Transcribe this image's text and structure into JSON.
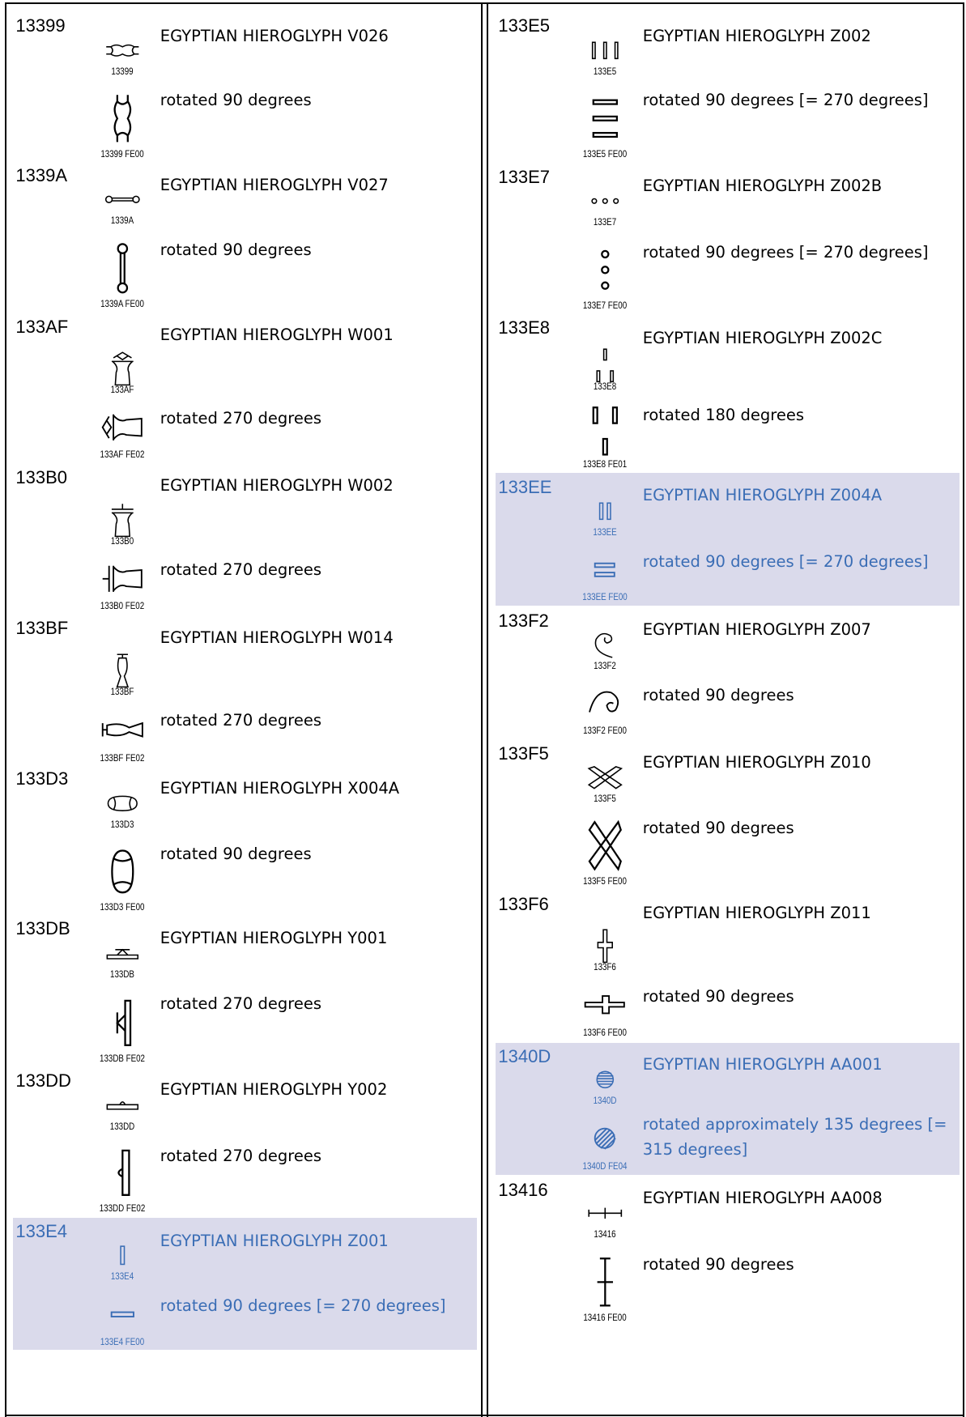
{
  "columns": [
    {
      "entries": [
        {
          "code": "13399",
          "name": "EGYPTIAN HIEROGLYPH V026",
          "glyph_label": "13399",
          "variant": {
            "description": "rotated 90 degrees",
            "label": "13399 FE00"
          },
          "highlighted": false
        },
        {
          "code": "1339A",
          "name": "EGYPTIAN HIEROGLYPH V027",
          "glyph_label": "1339A",
          "variant": {
            "description": "rotated 90 degrees",
            "label": "1339A FE00"
          },
          "highlighted": false
        },
        {
          "code": "133AF",
          "name": "EGYPTIAN HIEROGLYPH W001",
          "glyph_label": "133AF",
          "variant": {
            "description": "rotated 270 degrees",
            "label": "133AF FE02"
          },
          "highlighted": false
        },
        {
          "code": "133B0",
          "name": "EGYPTIAN HIEROGLYPH W002",
          "glyph_label": "133B0",
          "variant": {
            "description": "rotated 270 degrees",
            "label": "133B0 FE02"
          },
          "highlighted": false
        },
        {
          "code": "133BF",
          "name": "EGYPTIAN HIEROGLYPH W014",
          "glyph_label": "133BF",
          "variant": {
            "description": "rotated 270 degrees",
            "label": "133BF FE02"
          },
          "highlighted": false
        },
        {
          "code": "133D3",
          "name": "EGYPTIAN HIEROGLYPH X004A",
          "glyph_label": "133D3",
          "variant": {
            "description": "rotated 90 degrees",
            "label": "133D3 FE00"
          },
          "highlighted": false
        },
        {
          "code": "133DB",
          "name": "EGYPTIAN HIEROGLYPH Y001",
          "glyph_label": "133DB",
          "variant": {
            "description": "rotated 270 degrees",
            "label": "133DB FE02"
          },
          "highlighted": false
        },
        {
          "code": "133DD",
          "name": "EGYPTIAN HIEROGLYPH Y002",
          "glyph_label": "133DD",
          "variant": {
            "description": "rotated 270 degrees",
            "label": "133DD FE02"
          },
          "highlighted": false
        },
        {
          "code": "133E4",
          "name": "EGYPTIAN HIEROGLYPH Z001",
          "glyph_label": "133E4",
          "variant": {
            "description": "rotated 90 degrees [= 270 degrees]",
            "label": "133E4 FE00"
          },
          "highlighted": true
        }
      ]
    },
    {
      "entries": [
        {
          "code": "133E5",
          "name": "EGYPTIAN HIEROGLYPH Z002",
          "glyph_label": "133E5",
          "variant": {
            "description": "rotated 90 degrees [= 270 degrees]",
            "label": "133E5 FE00"
          },
          "highlighted": false
        },
        {
          "code": "133E7",
          "name": "EGYPTIAN HIEROGLYPH Z002B",
          "glyph_label": "133E7",
          "variant": {
            "description": "rotated 90 degrees [= 270 degrees]",
            "label": "133E7 FE00"
          },
          "highlighted": false
        },
        {
          "code": "133E8",
          "name": "EGYPTIAN HIEROGLYPH Z002C",
          "glyph_label": "133E8",
          "variant": {
            "description": "rotated 180 degrees",
            "label": "133E8 FE01"
          },
          "highlighted": false
        },
        {
          "code": "133EE",
          "name": "EGYPTIAN HIEROGLYPH Z004A",
          "glyph_label": "133EE",
          "variant": {
            "description": "rotated 90 degrees [= 270 degrees]",
            "label": "133EE FE00"
          },
          "highlighted": true
        },
        {
          "code": "133F2",
          "name": "EGYPTIAN HIEROGLYPH Z007",
          "glyph_label": "133F2",
          "variant": {
            "description": "rotated 90 degrees",
            "label": "133F2 FE00"
          },
          "highlighted": false
        },
        {
          "code": "133F5",
          "name": "EGYPTIAN HIEROGLYPH Z010",
          "glyph_label": "133F5",
          "variant": {
            "description": "rotated 90 degrees",
            "label": "133F5 FE00"
          },
          "highlighted": false
        },
        {
          "code": "133F6",
          "name": "EGYPTIAN HIEROGLYPH Z011",
          "glyph_label": "133F6",
          "variant": {
            "description": "rotated 90 degrees",
            "label": "133F6 FE00"
          },
          "highlighted": false
        },
        {
          "code": "1340D",
          "name": "EGYPTIAN HIEROGLYPH AA001",
          "glyph_label": "1340D",
          "variant": {
            "description": "rotated approximately 135 degrees [= 315 degrees]",
            "label": "1340D FE04"
          },
          "highlighted": true
        },
        {
          "code": "13416",
          "name": "EGYPTIAN HIEROGLYPH AA008",
          "glyph_label": "13416",
          "variant": {
            "description": "rotated 90 degrees",
            "label": "13416 FE00"
          },
          "highlighted": false
        }
      ]
    }
  ]
}
